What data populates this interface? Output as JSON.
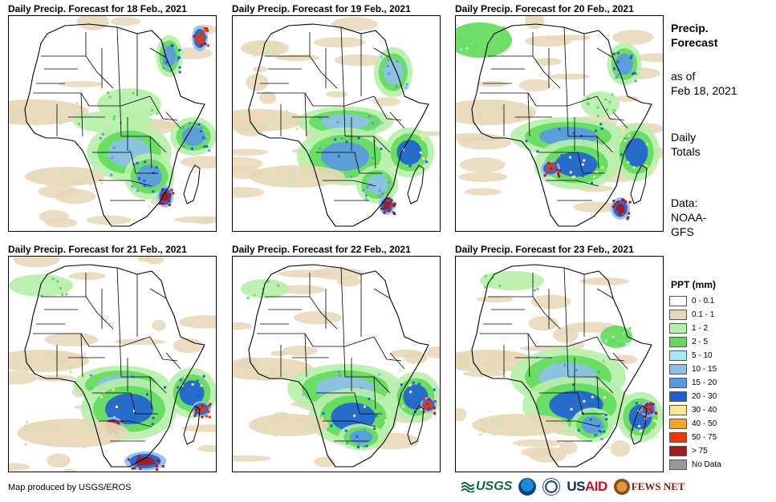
{
  "panels": [
    {
      "title": "Daily Precip. Forecast for 18 Feb., 2021"
    },
    {
      "title": "Daily Precip. Forecast for 19 Feb., 2021"
    },
    {
      "title": "Daily Precip. Forecast for 20 Feb., 2021"
    },
    {
      "title": "Daily Precip. Forecast for 21 Feb., 2021"
    },
    {
      "title": "Daily Precip. Forecast for 22 Feb., 2021"
    },
    {
      "title": "Daily Precip. Forecast for 23 Feb., 2021"
    }
  ],
  "side": {
    "title_line1": "Precip.",
    "title_line2": "Forecast",
    "asof_line1": "as of",
    "asof_line2": "Feb 18, 2021",
    "totals_line1": "Daily",
    "totals_line2": "Totals",
    "data_line1": "Data:",
    "data_line2": "NOAA-",
    "data_line3": "GFS"
  },
  "legend": {
    "title": "PPT (mm)",
    "items": [
      {
        "label": "0 - 0.1",
        "color": "#ffffff"
      },
      {
        "label": "0.1 - 1",
        "color": "#e8d7b6"
      },
      {
        "label": "1 - 2",
        "color": "#b6f0a8"
      },
      {
        "label": "2 - 5",
        "color": "#5fdc5a"
      },
      {
        "label": "5 - 10",
        "color": "#a8e8f4"
      },
      {
        "label": "10 - 15",
        "color": "#8fbfec"
      },
      {
        "label": "15 - 20",
        "color": "#5a98e6"
      },
      {
        "label": "20 - 30",
        "color": "#1f5fd6"
      },
      {
        "label": "30 - 40",
        "color": "#fbe89a"
      },
      {
        "label": "40 - 50",
        "color": "#f5a623"
      },
      {
        "label": "50 - 75",
        "color": "#e8380c"
      },
      {
        "label": "> 75",
        "color": "#a31b1b"
      },
      {
        "label": "No Data",
        "color": "#999999"
      }
    ]
  },
  "footer": {
    "credit": "Map produced by USGS/EROS",
    "logo_usgs": "USGS",
    "logo_usaid_a": "US",
    "logo_usaid_b": "AID",
    "logo_fews": "FEWS NET"
  }
}
